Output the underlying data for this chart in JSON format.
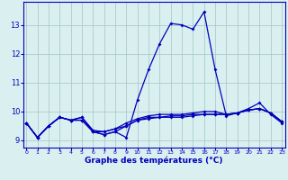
{
  "xlabel": "Graphe des températures (°C)",
  "bg_color": "#daf0f0",
  "grid_color": "#aacccc",
  "line_color": "#0000bb",
  "x_ticks": [
    0,
    1,
    2,
    3,
    4,
    5,
    6,
    7,
    8,
    9,
    10,
    11,
    12,
    13,
    14,
    15,
    16,
    17,
    18,
    19,
    20,
    21,
    22,
    23
  ],
  "y_ticks": [
    9,
    10,
    11,
    12,
    13
  ],
  "xlim": [
    -0.3,
    23.3
  ],
  "ylim": [
    8.75,
    13.8
  ],
  "series": [
    [
      9.6,
      9.1,
      9.5,
      9.8,
      9.7,
      9.7,
      9.3,
      9.2,
      9.3,
      9.1,
      10.4,
      11.45,
      12.35,
      13.05,
      13.0,
      12.85,
      13.45,
      11.45,
      9.85,
      9.95,
      10.1,
      10.3,
      9.9,
      9.6
    ],
    [
      9.6,
      9.1,
      9.5,
      9.8,
      9.7,
      9.8,
      9.35,
      9.3,
      9.4,
      9.5,
      9.7,
      9.8,
      9.8,
      9.8,
      9.8,
      9.85,
      9.9,
      9.9,
      9.9,
      9.95,
      10.05,
      10.1,
      9.95,
      9.65
    ],
    [
      9.6,
      9.1,
      9.5,
      9.8,
      9.7,
      9.7,
      9.3,
      9.2,
      9.3,
      9.5,
      9.7,
      9.75,
      9.8,
      9.85,
      9.85,
      9.9,
      9.9,
      9.9,
      9.9,
      9.95,
      10.05,
      10.1,
      9.95,
      9.65
    ],
    [
      9.6,
      9.1,
      9.5,
      9.8,
      9.7,
      9.8,
      9.3,
      9.3,
      9.4,
      9.6,
      9.75,
      9.85,
      9.9,
      9.9,
      9.9,
      9.95,
      10.0,
      10.0,
      9.9,
      9.95,
      10.05,
      10.1,
      9.95,
      9.65
    ]
  ]
}
